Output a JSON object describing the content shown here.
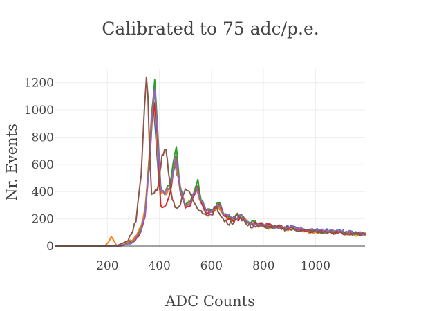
{
  "chart_data": {
    "type": "line",
    "title": "Calibrated to 75 adc/p.e.",
    "xlabel": "ADC Counts",
    "ylabel": "Nr. Events",
    "xlim": [
      0,
      1190
    ],
    "ylim": [
      0,
      1300
    ],
    "xticks": [
      200,
      400,
      600,
      800,
      1000
    ],
    "yticks": [
      0,
      200,
      400,
      600,
      800,
      1000,
      1200
    ],
    "grid": true,
    "legend": "none",
    "series": [
      {
        "color": "#1f77b4",
        "shift": 0,
        "scale": 1.0,
        "peaks": [
          [
            375,
            1050,
            12
          ],
          [
            460,
            610,
            14
          ],
          [
            540,
            440,
            16
          ],
          [
            625,
            300,
            20
          ],
          [
            710,
            215,
            26
          ],
          [
            800,
            150,
            35
          ]
        ],
        "x": [
          0,
          200,
          250,
          300,
          330,
          345,
          360,
          370,
          375,
          385,
          400,
          420,
          440,
          460,
          480,
          500,
          520,
          540,
          560,
          580,
          600,
          625,
          650,
          680,
          710,
          740,
          780,
          800,
          850,
          900,
          950,
          1000,
          1050,
          1100,
          1190
        ],
        "y": [
          0,
          0,
          0,
          40,
          130,
          260,
          600,
          930,
          1050,
          850,
          420,
          380,
          420,
          610,
          420,
          300,
          320,
          440,
          330,
          250,
          260,
          300,
          230,
          200,
          215,
          180,
          160,
          150,
          140,
          135,
          125,
          115,
          110,
          105,
          90
        ]
      },
      {
        "color": "#ff7f0e",
        "shift": 0,
        "scale": 1.0,
        "x": [
          0,
          190,
          205,
          215,
          225,
          235,
          260,
          300,
          330,
          345,
          360,
          370,
          378,
          390,
          400,
          420,
          440,
          462,
          480,
          500,
          520,
          542,
          560,
          580,
          600,
          625,
          650,
          680,
          710,
          740,
          780,
          800,
          850,
          900,
          950,
          1000,
          1050,
          1100,
          1190
        ],
        "y": [
          0,
          0,
          30,
          70,
          40,
          5,
          10,
          50,
          150,
          280,
          640,
          980,
          1080,
          820,
          420,
          380,
          430,
          620,
          420,
          300,
          320,
          430,
          320,
          250,
          260,
          290,
          220,
          190,
          205,
          170,
          150,
          140,
          135,
          125,
          115,
          105,
          100,
          95,
          80
        ]
      },
      {
        "color": "#2ca02c",
        "shift": 0,
        "scale": 1.0,
        "x": [
          0,
          200,
          250,
          300,
          330,
          345,
          360,
          372,
          382,
          392,
          405,
          420,
          440,
          465,
          480,
          500,
          520,
          548,
          560,
          580,
          600,
          628,
          650,
          680,
          712,
          740,
          780,
          800,
          850,
          900,
          950,
          1000,
          1050,
          1100,
          1190
        ],
        "y": [
          0,
          0,
          0,
          35,
          120,
          240,
          600,
          1000,
          1220,
          900,
          440,
          380,
          450,
          730,
          440,
          300,
          330,
          490,
          340,
          260,
          265,
          320,
          230,
          200,
          230,
          180,
          160,
          150,
          140,
          130,
          120,
          110,
          105,
          100,
          85
        ]
      },
      {
        "color": "#d62728",
        "shift": 0,
        "scale": 1.0,
        "x": [
          0,
          200,
          250,
          300,
          330,
          345,
          360,
          372,
          382,
          392,
          405,
          420,
          440,
          463,
          480,
          500,
          520,
          545,
          560,
          580,
          600,
          628,
          650,
          680,
          710,
          740,
          780,
          800,
          850,
          900,
          950,
          1000,
          1050,
          1100,
          1190
        ],
        "y": [
          0,
          0,
          0,
          30,
          110,
          220,
          560,
          920,
          1050,
          820,
          300,
          290,
          380,
          660,
          400,
          280,
          300,
          440,
          320,
          240,
          250,
          310,
          220,
          190,
          210,
          175,
          160,
          155,
          140,
          130,
          120,
          110,
          105,
          100,
          95
        ]
      },
      {
        "color": "#9467bd",
        "shift": 0,
        "scale": 1.0,
        "x": [
          0,
          200,
          250,
          300,
          330,
          345,
          360,
          372,
          382,
          392,
          405,
          420,
          440,
          463,
          480,
          500,
          520,
          545,
          560,
          580,
          600,
          625,
          650,
          680,
          710,
          740,
          780,
          800,
          850,
          900,
          950,
          1000,
          1050,
          1100,
          1190
        ],
        "y": [
          0,
          0,
          0,
          30,
          110,
          230,
          580,
          960,
          1150,
          860,
          420,
          380,
          420,
          650,
          420,
          300,
          320,
          430,
          330,
          250,
          260,
          300,
          230,
          200,
          220,
          180,
          165,
          160,
          145,
          135,
          125,
          115,
          110,
          105,
          90
        ]
      },
      {
        "color": "#8c564b",
        "shift": 0,
        "scale": 1.0,
        "x": [
          0,
          200,
          240,
          280,
          310,
          330,
          342,
          350,
          356,
          362,
          370,
          380,
          395,
          410,
          425,
          440,
          450,
          465,
          480,
          500,
          520,
          540,
          560,
          580,
          600,
          615,
          630,
          650,
          680,
          700,
          740,
          780,
          800,
          850,
          900,
          950,
          1000,
          1050,
          1100,
          1190
        ],
        "y": [
          0,
          0,
          5,
          40,
          180,
          520,
          1000,
          1240,
          1100,
          700,
          380,
          390,
          440,
          670,
          710,
          480,
          340,
          280,
          300,
          420,
          380,
          300,
          260,
          230,
          230,
          290,
          240,
          180,
          160,
          240,
          150,
          140,
          145,
          135,
          125,
          115,
          105,
          100,
          95,
          85
        ]
      }
    ]
  }
}
